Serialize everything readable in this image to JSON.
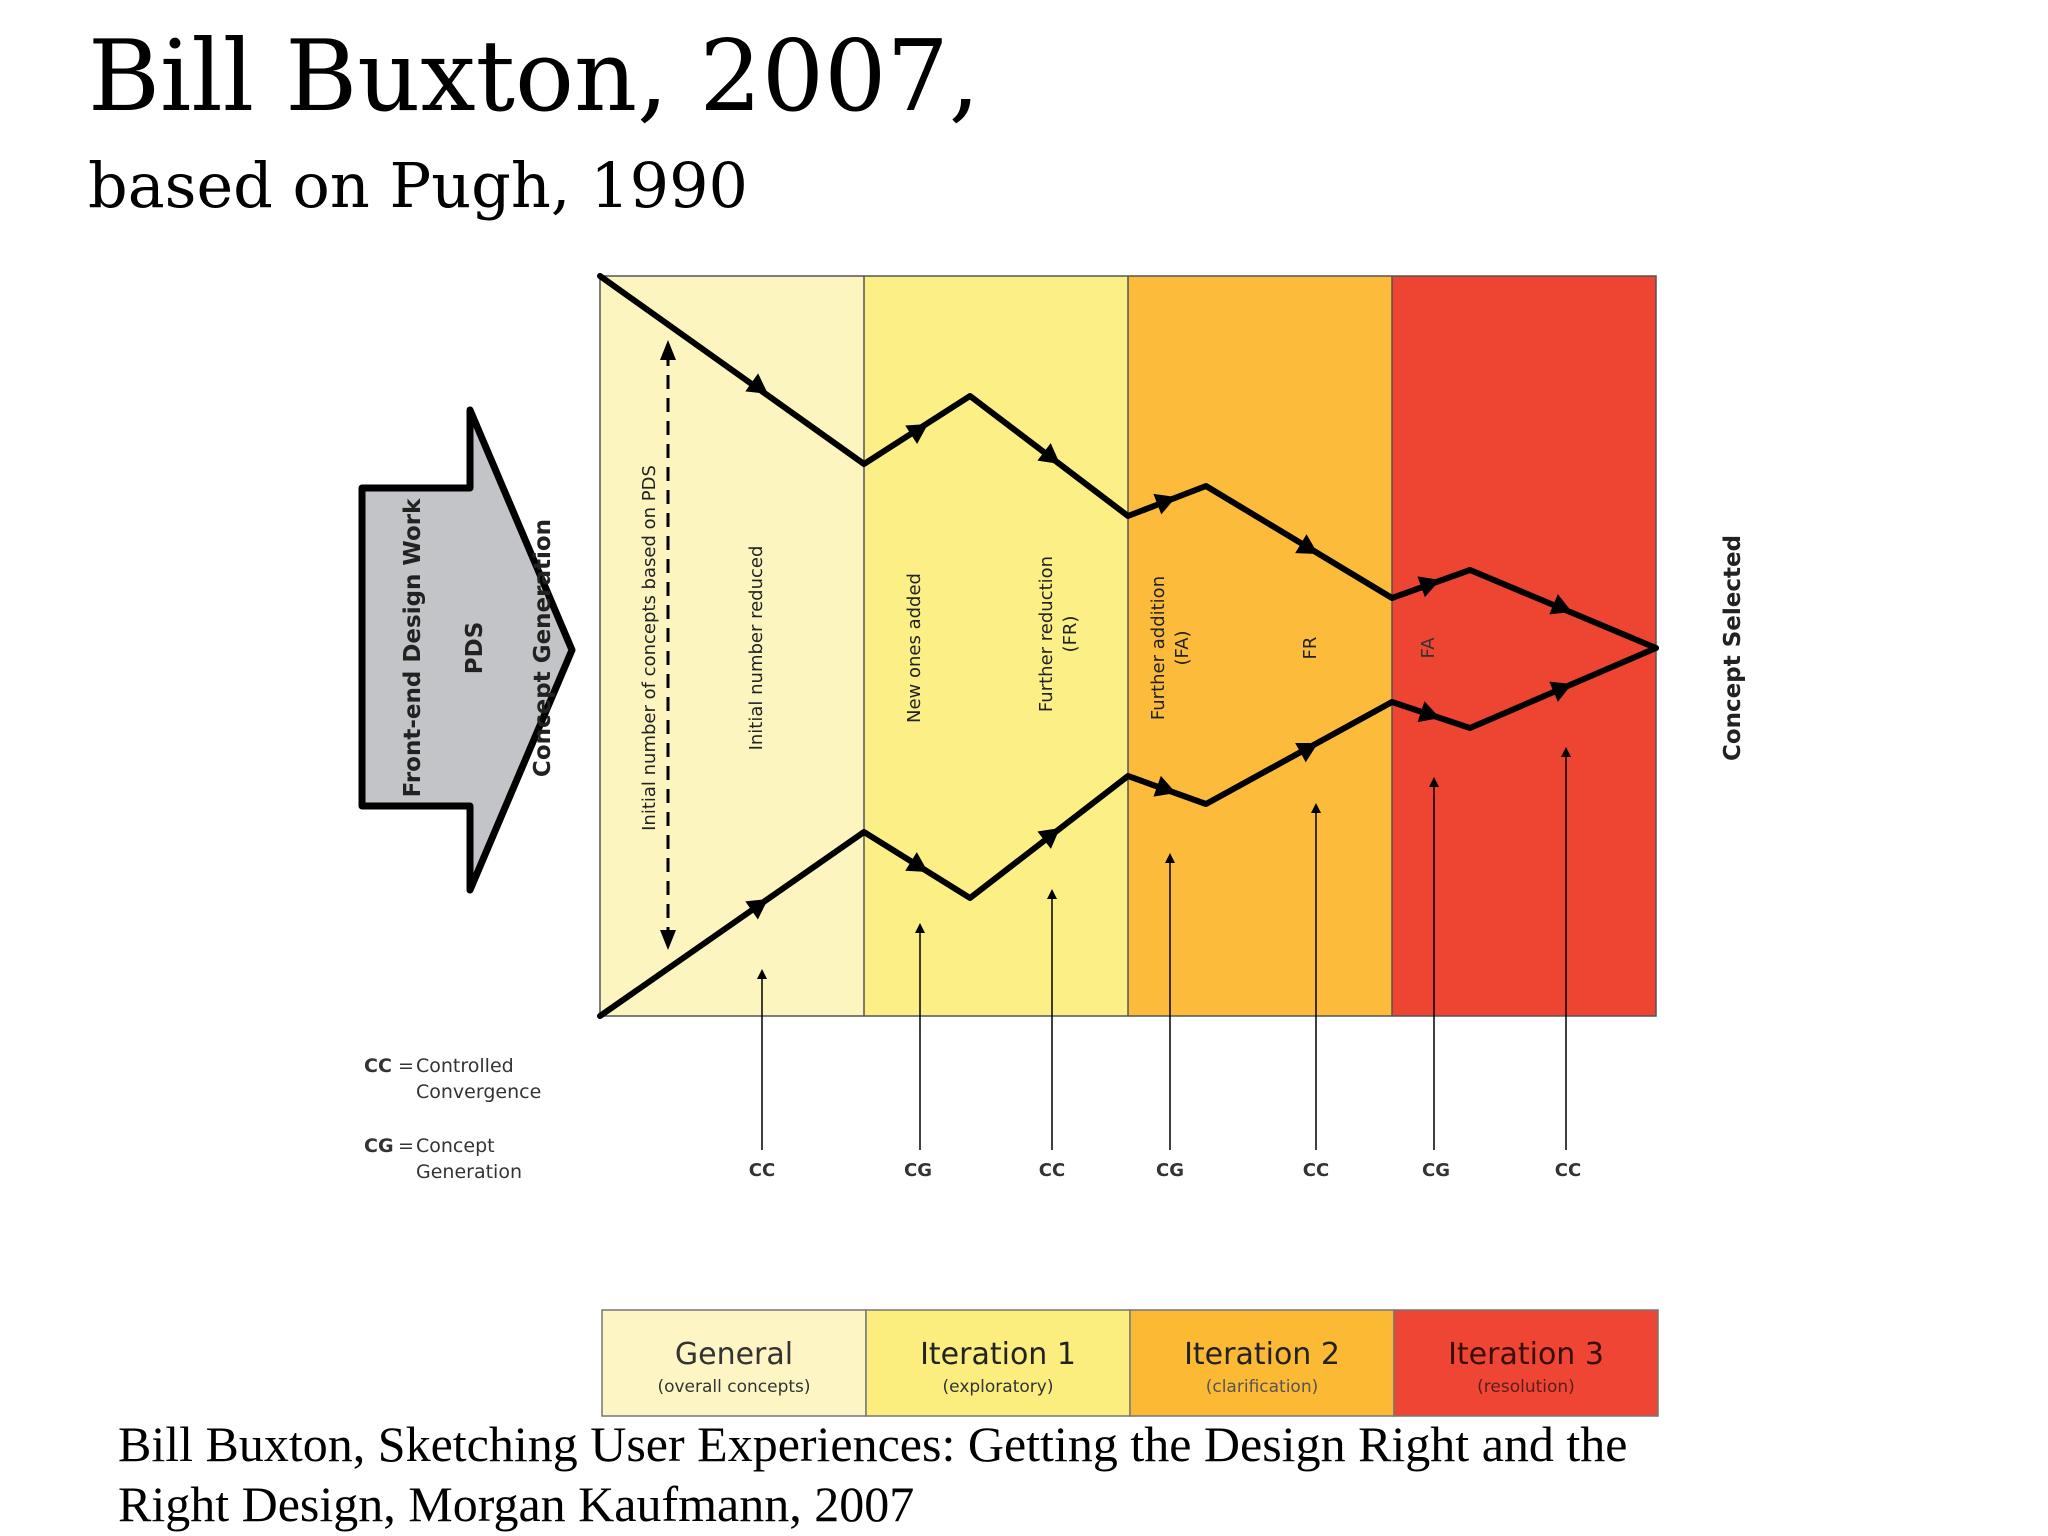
{
  "slide": {
    "title": "Bill Buxton, 2007,",
    "subtitle": "based on Pugh, 1990",
    "caption_line1": "Bill Buxton, Sketching User Experiences: Getting the Design Right and the",
    "caption_line2": "Right Design, Morgan Kaufmann, 2007"
  },
  "diagram": {
    "input_arrow": {
      "front_end": "Front-end Design Work",
      "pds": "PDS",
      "concept_generation": "Concept Generation"
    },
    "initial_number_label": "Initial number of concepts based on PDS",
    "phase_notes": [
      {
        "line1": "Initial number reduced",
        "line2": ""
      },
      {
        "line1": "New ones added",
        "line2": ""
      },
      {
        "line1": "Further reduction",
        "line2": "(FR)"
      },
      {
        "line1": "Further addition",
        "line2": "(FA)"
      },
      {
        "line1": "FR",
        "line2": ""
      },
      {
        "line1": "FA",
        "line2": ""
      }
    ],
    "concept_selected": "Concept Selected",
    "legend": [
      {
        "abbr": "CC",
        "eq": "=",
        "line1": "Controlled",
        "line2": "Convergence"
      },
      {
        "abbr": "CG",
        "eq": "=",
        "line1": "Concept",
        "line2": "Generation"
      }
    ],
    "arrow_labels": [
      "CC",
      "CG",
      "CC",
      "CG",
      "CC",
      "CG",
      "CC"
    ],
    "phases": [
      {
        "name": "General",
        "sub": "(overall concepts)",
        "color": "#fdf6c4",
        "band_color": "#fdf5c0",
        "text_color": "#333333",
        "sub_color": "#333333"
      },
      {
        "name": "Iteration 1",
        "sub": "(exploratory)",
        "color": "#fbee7e",
        "band_color": "#fbef86",
        "text_color": "#222222",
        "sub_color": "#333333"
      },
      {
        "name": "Iteration 2",
        "sub": "(clarification)",
        "color": "#fcb934",
        "band_color": "#fcbb3a",
        "text_color": "#222222",
        "sub_color": "#555555"
      },
      {
        "name": "Iteration 3",
        "sub": "(resolution)",
        "color": "#ee4535",
        "band_color": "#ee4432",
        "text_color": "#3a0f0a",
        "sub_color": "#5a1e18"
      }
    ],
    "colors": {
      "arrow_fill": "#c3c4c8",
      "line": "#000000"
    }
  }
}
